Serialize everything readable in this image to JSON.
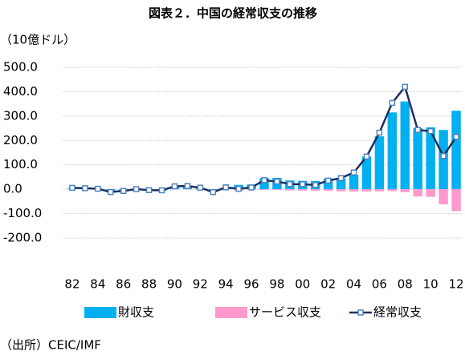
{
  "chart_data": {
    "type": "bar-line",
    "title": "図表２．中国の経常収支の推移",
    "y_label": "（10億ドル）",
    "source": "（出所）CEIC/IMF",
    "categories": [
      "82",
      null,
      "84",
      null,
      "86",
      null,
      "88",
      null,
      "90",
      null,
      "92",
      null,
      "94",
      null,
      "96",
      null,
      "98",
      null,
      "00",
      null,
      "02",
      null,
      "04",
      null,
      "06",
      null,
      "08",
      null,
      "10",
      null,
      "12"
    ],
    "series": [
      {
        "name": "財収支",
        "kind": "bar",
        "color": "#00b0f0",
        "values": [
          4.2,
          2,
          0,
          -13,
          -9,
          -2,
          -5,
          -6,
          9,
          8.7,
          5,
          -10.7,
          7.3,
          18,
          19.5,
          46,
          46.6,
          36,
          34.5,
          34,
          44,
          44.7,
          59,
          134,
          217,
          315,
          360,
          250,
          254,
          243,
          322
        ]
      },
      {
        "name": "サービス収支",
        "kind": "bar",
        "color": "#ff99cc",
        "values": [
          0.6,
          0.5,
          0.2,
          -0.5,
          -0.4,
          0.3,
          -0.4,
          -0.5,
          1,
          1.5,
          0,
          -0.3,
          0.3,
          -6,
          -2,
          -3,
          -2.8,
          -5,
          -5.6,
          -5.9,
          -6.8,
          -8.6,
          -9.7,
          -9.4,
          -8.8,
          -7.9,
          -11.8,
          -29.4,
          -31.2,
          -61.8,
          -89.7
        ]
      },
      {
        "name": "経常収支",
        "kind": "line",
        "color": "#1f2f5f",
        "marker_color": "#4f81bd",
        "values": [
          5.7,
          4.2,
          2,
          -11.4,
          -7,
          0.3,
          -3.8,
          -4.3,
          12,
          13.3,
          6.4,
          -11.9,
          7.7,
          1.6,
          7.2,
          37,
          31.5,
          21.1,
          20.5,
          17.4,
          35.4,
          45.9,
          68.7,
          134,
          232,
          354,
          420,
          243,
          238,
          136,
          215
        ]
      }
    ],
    "ylim": [
      -200,
      500
    ],
    "yticks": [
      {
        "value": -200,
        "label": "-200.0"
      },
      {
        "value": -100,
        "label": "-100.0"
      },
      {
        "value": 0,
        "label": "0.0"
      },
      {
        "value": 100,
        "label": "100.0"
      },
      {
        "value": 200,
        "label": "200.0"
      },
      {
        "value": 300,
        "label": "300.0"
      },
      {
        "value": 400,
        "label": "400.0"
      },
      {
        "value": 500,
        "label": "500.0"
      }
    ],
    "grid": true,
    "legend": "bottom"
  }
}
